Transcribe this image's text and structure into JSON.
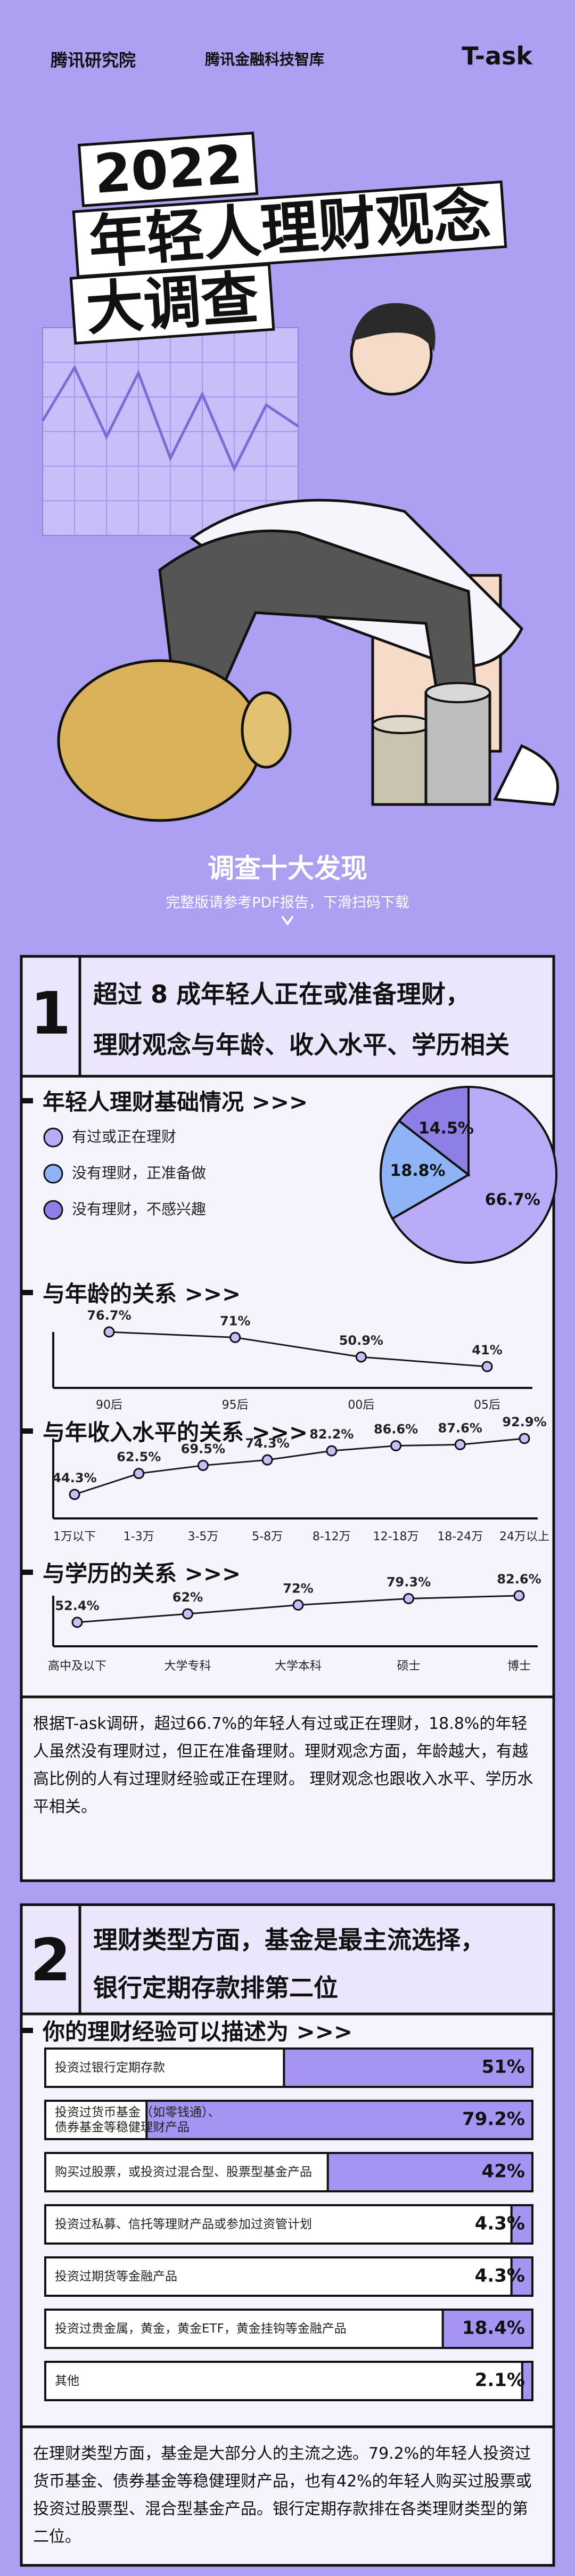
{
  "header": {
    "logos": [
      "腾讯研究院",
      "腾讯金融科技智库"
    ],
    "brand": "T-ask"
  },
  "title": {
    "year": "2022",
    "line1": "年轻人理财观念",
    "line2": "大调查"
  },
  "intro": {
    "heading": "调查十大发现",
    "subtitle": "完整版请参考PDF报告，下滑扫码下载"
  },
  "sections": [
    {
      "number": "1",
      "headline": [
        "超过 8 成年轻人正在或准备理财，",
        "理财观念与年龄、收入水平、学历相关"
      ],
      "paragraph": "根据T-ask调研，超过66.7%的年轻人有过或正在理财，18.8%的年轻人虽然没有理财过，但正在准备理财。理财观念方面，年龄越大，有越高比例的人有过理财经验或正在理财。 理财观念也跟收入水平、学历水平相关。"
    },
    {
      "number": "2",
      "headline": [
        "理财类型方面，基金是最主流选择，",
        "银行定期存款排第二位"
      ],
      "paragraph": "在理财类型方面，基金是大部分人的主流之选。79.2%的年轻人投资过货币基金、债券基金等稳健理财产品，也有42%的年轻人购买过股票或投资过股票型、混合型基金产品。银行定期存款排在各类理财类型的第二位。"
    }
  ],
  "chart_data": [
    {
      "type": "pie",
      "title": "年轻人理财基础情况 >>>",
      "categories": [
        "有过或正在理财",
        "没有理财，正准备做",
        "没有理财，不感兴趣"
      ],
      "values": [
        66.7,
        18.8,
        14.5
      ],
      "value_labels": [
        "66.7%",
        "18.8%",
        "14.5%"
      ],
      "colors": [
        "#b9abf8",
        "#8fb3f7",
        "#8e7fe6"
      ]
    },
    {
      "type": "line",
      "title": "与年龄的关系 >>>",
      "categories": [
        "90后",
        "95后",
        "00后",
        "05后"
      ],
      "values": [
        76.7,
        71,
        50.9,
        41
      ],
      "value_labels": [
        "76.7%",
        "71%",
        "50.9%",
        "41%"
      ],
      "color": "#1a1a1a"
    },
    {
      "type": "line",
      "title": "与年收入水平的关系 >>>",
      "categories": [
        "1万以下",
        "1-3万",
        "3-5万",
        "5-8万",
        "8-12万",
        "12-18万",
        "18-24万",
        "24万以上"
      ],
      "values": [
        44.3,
        62.5,
        69.5,
        74.3,
        82.2,
        86.6,
        87.6,
        92.9
      ],
      "value_labels": [
        "44.3%",
        "62.5%",
        "69.5%",
        "74.3%",
        "82.2%",
        "86.6%",
        "87.6%",
        "92.9%"
      ],
      "color": "#1a1a1a"
    },
    {
      "type": "line",
      "title": "与学历的关系 >>>",
      "categories": [
        "高中及以下",
        "大学专科",
        "大学本科",
        "硕士",
        "博士"
      ],
      "values": [
        52.4,
        62,
        72,
        79.3,
        82.6
      ],
      "value_labels": [
        "52.4%",
        "62%",
        "72%",
        "79.3%",
        "82.6%"
      ],
      "color": "#1a1a1a"
    },
    {
      "type": "bar",
      "title": "你的理财经验可以描述为 >>>",
      "categories": [
        "投资过银行定期存款",
        "投资过货币基金（如零钱通）、\n债券基金等稳健理财产品",
        "购买过股票，或投资过混合型、股票型基金产品",
        "投资过私募、信托等理财产品或参加过资管计划",
        "投资过期货等金融产品",
        "投资过贵金属，黄金，黄金ETF，黄金挂钩等金融产品",
        "其他"
      ],
      "values": [
        51,
        79.2,
        42,
        4.3,
        4.3,
        18.4,
        2.1
      ],
      "value_labels": [
        "51%",
        "79.2%",
        "42%",
        "4.3%",
        "4.3%",
        "18.4%",
        "2.1%"
      ],
      "color": "#a594f2",
      "xlim": [
        0,
        100
      ]
    }
  ]
}
